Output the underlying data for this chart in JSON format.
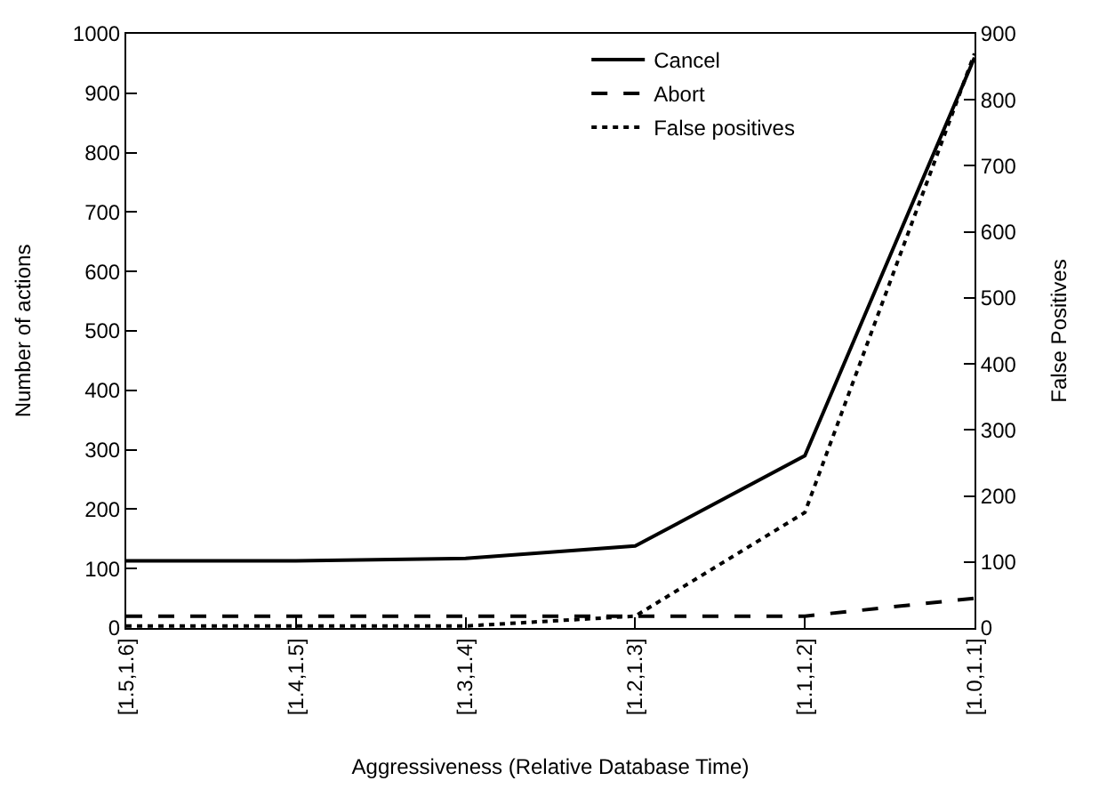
{
  "chart_data": {
    "type": "line",
    "xlabel": "Aggressiveness (Relative Database Time)",
    "ylabel": "Number of actions",
    "y2label": "False Positives",
    "categories": [
      "[1.5,1.6]",
      "[1.4,1.5]",
      "[1.3,1.4]",
      "[1.2,1.3]",
      "[1.1,1.2]",
      "[1.0,1.1]"
    ],
    "series": [
      {
        "name": "Cancel",
        "color": "#000000",
        "line_style": "solid",
        "values": [
          113,
          113,
          117,
          138,
          290,
          960
        ]
      },
      {
        "name": "Abort",
        "color": "#000000",
        "line_style": "dashed",
        "values": [
          20,
          20,
          20,
          20,
          20,
          50
        ]
      },
      {
        "name": "False positives",
        "color": "#000000",
        "line_style": "dotted",
        "axis": "y2",
        "values": [
          3,
          3,
          3,
          18,
          175,
          870
        ]
      }
    ],
    "ylim": [
      0,
      1000
    ],
    "yticks": [
      0,
      100,
      200,
      300,
      400,
      500,
      600,
      700,
      800,
      900,
      1000
    ],
    "y2lim": [
      0,
      900
    ],
    "y2ticks": [
      0,
      100,
      200,
      300,
      400,
      500,
      600,
      700,
      800,
      900
    ],
    "legend": "top right",
    "marker": "none"
  }
}
